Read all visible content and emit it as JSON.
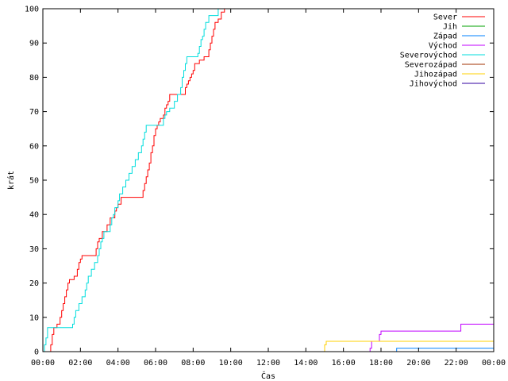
{
  "chart_data": {
    "type": "line",
    "title": "",
    "xlabel": "Čas",
    "ylabel": "krát",
    "xlim": [
      "00:00",
      "24:00"
    ],
    "ylim": [
      0,
      100
    ],
    "grid": false,
    "legend_position": "top-right",
    "x_ticks": [
      "00:00",
      "02:00",
      "04:00",
      "06:00",
      "08:00",
      "10:00",
      "12:00",
      "14:00",
      "16:00",
      "18:00",
      "20:00",
      "22:00",
      "00:00"
    ],
    "y_ticks": [
      0,
      10,
      20,
      30,
      40,
      50,
      60,
      70,
      80,
      90,
      100
    ],
    "series": [
      {
        "name": "Sever",
        "color": "#ff0000",
        "points": [
          [
            "00:20",
            0
          ],
          [
            "00:25",
            2
          ],
          [
            "00:30",
            5
          ],
          [
            "00:35",
            7
          ],
          [
            "00:45",
            8
          ],
          [
            "00:55",
            10
          ],
          [
            "01:00",
            12
          ],
          [
            "01:05",
            14
          ],
          [
            "01:10",
            16
          ],
          [
            "01:15",
            18
          ],
          [
            "01:20",
            20
          ],
          [
            "01:25",
            21
          ],
          [
            "01:35",
            21
          ],
          [
            "01:40",
            22
          ],
          [
            "01:45",
            22
          ],
          [
            "01:50",
            24
          ],
          [
            "01:55",
            26
          ],
          [
            "02:00",
            27
          ],
          [
            "02:05",
            28
          ],
          [
            "02:20",
            28
          ],
          [
            "02:45",
            28
          ],
          [
            "02:50",
            30
          ],
          [
            "02:55",
            32
          ],
          [
            "03:00",
            33
          ],
          [
            "03:10",
            35
          ],
          [
            "03:20",
            35
          ],
          [
            "03:25",
            37
          ],
          [
            "03:35",
            39
          ],
          [
            "03:45",
            39
          ],
          [
            "03:50",
            41
          ],
          [
            "03:55",
            42
          ],
          [
            "04:00",
            43
          ],
          [
            "04:10",
            45
          ],
          [
            "04:30",
            45
          ],
          [
            "05:15",
            45
          ],
          [
            "05:20",
            47
          ],
          [
            "05:25",
            49
          ],
          [
            "05:30",
            51
          ],
          [
            "05:35",
            53
          ],
          [
            "05:40",
            55
          ],
          [
            "05:45",
            58
          ],
          [
            "05:50",
            60
          ],
          [
            "05:55",
            63
          ],
          [
            "06:00",
            65
          ],
          [
            "06:05",
            66
          ],
          [
            "06:10",
            67
          ],
          [
            "06:15",
            68
          ],
          [
            "06:25",
            69
          ],
          [
            "06:30",
            71
          ],
          [
            "06:35",
            72
          ],
          [
            "06:40",
            73
          ],
          [
            "06:45",
            75
          ],
          [
            "07:00",
            75
          ],
          [
            "07:30",
            75
          ],
          [
            "07:35",
            77
          ],
          [
            "07:40",
            78
          ],
          [
            "07:45",
            79
          ],
          [
            "07:50",
            80
          ],
          [
            "07:55",
            81
          ],
          [
            "08:00",
            82
          ],
          [
            "08:05",
            84
          ],
          [
            "08:20",
            85
          ],
          [
            "08:35",
            86
          ],
          [
            "08:45",
            86
          ],
          [
            "08:50",
            88
          ],
          [
            "08:55",
            90
          ],
          [
            "09:00",
            92
          ],
          [
            "09:05",
            94
          ],
          [
            "09:10",
            96
          ],
          [
            "09:20",
            97
          ],
          [
            "09:30",
            99
          ],
          [
            "09:40",
            100
          ],
          [
            "24:00",
            100
          ]
        ]
      },
      {
        "name": "Jih",
        "color": "#00a000",
        "points": [
          [
            "00:00",
            0
          ],
          [
            "24:00",
            0
          ]
        ]
      },
      {
        "name": "Západ",
        "color": "#0080ff",
        "points": [
          [
            "00:00",
            0
          ],
          [
            "18:45",
            0
          ],
          [
            "18:50",
            1
          ],
          [
            "24:00",
            1
          ]
        ]
      },
      {
        "name": "Východ",
        "color": "#c000ff",
        "points": [
          [
            "00:00",
            0
          ],
          [
            "17:20",
            0
          ],
          [
            "17:25",
            1
          ],
          [
            "17:30",
            3
          ],
          [
            "17:50",
            3
          ],
          [
            "17:55",
            5
          ],
          [
            "18:00",
            6
          ],
          [
            "22:10",
            6
          ],
          [
            "22:15",
            8
          ],
          [
            "24:00",
            8
          ]
        ]
      },
      {
        "name": "Severovýchod",
        "color": "#00dddd",
        "points": [
          [
            "00:00",
            0
          ],
          [
            "00:05",
            2
          ],
          [
            "00:10",
            4
          ],
          [
            "00:15",
            7
          ],
          [
            "01:30",
            7
          ],
          [
            "01:35",
            8
          ],
          [
            "01:40",
            10
          ],
          [
            "01:45",
            12
          ],
          [
            "01:55",
            14
          ],
          [
            "02:05",
            16
          ],
          [
            "02:15",
            18
          ],
          [
            "02:20",
            20
          ],
          [
            "02:25",
            22
          ],
          [
            "02:35",
            24
          ],
          [
            "02:45",
            26
          ],
          [
            "02:55",
            28
          ],
          [
            "03:00",
            30
          ],
          [
            "03:05",
            32
          ],
          [
            "03:10",
            33
          ],
          [
            "03:15",
            35
          ],
          [
            "03:30",
            35
          ],
          [
            "03:35",
            37
          ],
          [
            "03:40",
            39
          ],
          [
            "03:45",
            40
          ],
          [
            "03:50",
            42
          ],
          [
            "04:00",
            44
          ],
          [
            "04:05",
            46
          ],
          [
            "04:15",
            48
          ],
          [
            "04:25",
            50
          ],
          [
            "04:35",
            52
          ],
          [
            "04:45",
            54
          ],
          [
            "04:55",
            56
          ],
          [
            "05:05",
            58
          ],
          [
            "05:15",
            60
          ],
          [
            "05:20",
            62
          ],
          [
            "05:25",
            64
          ],
          [
            "05:30",
            66
          ],
          [
            "06:00",
            66
          ],
          [
            "06:20",
            66
          ],
          [
            "06:25",
            68
          ],
          [
            "06:30",
            69
          ],
          [
            "06:35",
            70
          ],
          [
            "06:45",
            71
          ],
          [
            "07:00",
            73
          ],
          [
            "07:10",
            75
          ],
          [
            "07:20",
            77
          ],
          [
            "07:25",
            80
          ],
          [
            "07:30",
            82
          ],
          [
            "07:35",
            84
          ],
          [
            "07:40",
            86
          ],
          [
            "08:10",
            86
          ],
          [
            "08:15",
            87
          ],
          [
            "08:20",
            89
          ],
          [
            "08:25",
            91
          ],
          [
            "08:30",
            92
          ],
          [
            "08:35",
            94
          ],
          [
            "08:40",
            96
          ],
          [
            "08:50",
            98
          ],
          [
            "09:15",
            98
          ],
          [
            "09:20",
            100
          ],
          [
            "24:00",
            100
          ]
        ]
      },
      {
        "name": "Severozápad",
        "color": "#a03000",
        "points": [
          [
            "00:00",
            0
          ],
          [
            "24:00",
            0
          ]
        ]
      },
      {
        "name": "Jihozápad",
        "color": "#ffd000",
        "points": [
          [
            "00:00",
            0
          ],
          [
            "14:55",
            0
          ],
          [
            "15:00",
            2
          ],
          [
            "15:05",
            3
          ],
          [
            "24:00",
            3
          ]
        ]
      },
      {
        "name": "Jihovýchod",
        "color": "#3000a0",
        "points": [
          [
            "00:00",
            0
          ],
          [
            "24:00",
            0
          ]
        ]
      }
    ]
  }
}
